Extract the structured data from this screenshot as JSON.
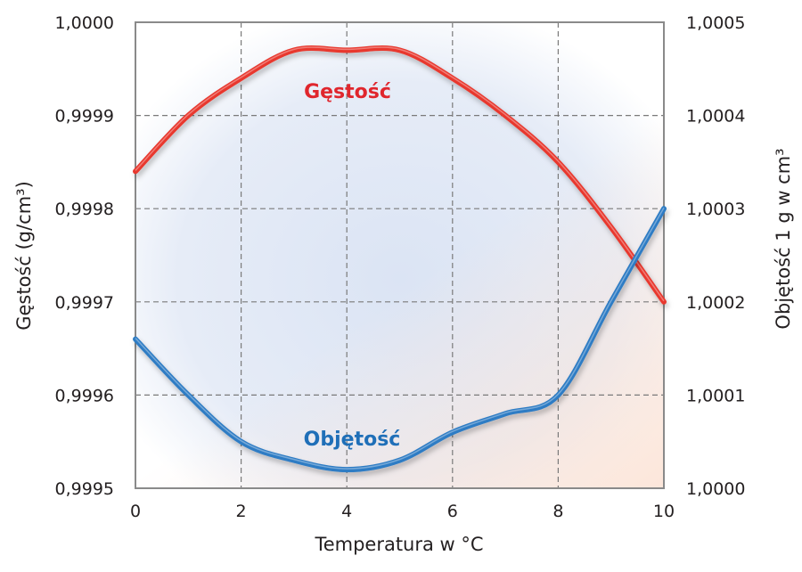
{
  "chart_data": {
    "type": "line",
    "xlabel": "Temperatura w °C",
    "ylabel_left": "Gęstość (g/cm³)",
    "ylabel_right": "Objętość 1 g w cm³",
    "xlim": [
      0,
      10
    ],
    "ylim_left": [
      0.9995,
      1.0
    ],
    "ylim_right": [
      1.0,
      1.0005
    ],
    "grid": true,
    "x_ticks": [
      "0",
      "2",
      "4",
      "6",
      "8",
      "10"
    ],
    "y_left_ticks": [
      "0,9995",
      "0,9996",
      "0,9997",
      "0,9998",
      "0,9999",
      "1,0000"
    ],
    "y_right_ticks": [
      "1,0000",
      "1,0001",
      "1,0002",
      "1,0003",
      "1,0004",
      "1,0005"
    ],
    "x": [
      0,
      1,
      2,
      3,
      4,
      5,
      6,
      7,
      8,
      9,
      10
    ],
    "series": [
      {
        "name": "Gęstość",
        "axis": "left",
        "color": "#e8392f",
        "values": [
          0.99984,
          0.9999,
          0.99994,
          0.99997,
          0.99997,
          0.99997,
          0.99994,
          0.9999,
          0.99985,
          0.99978,
          0.9997
        ]
      },
      {
        "name": "Objętość",
        "axis": "right",
        "color": "#2f7cc4",
        "values": [
          1.00016,
          1.0001,
          1.00005,
          1.00003,
          1.00002,
          1.00003,
          1.00006,
          1.00008,
          1.0001,
          1.0002,
          1.0003
        ]
      }
    ]
  }
}
